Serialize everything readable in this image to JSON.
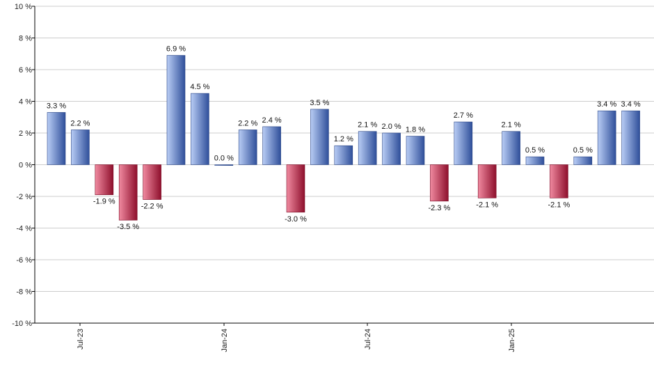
{
  "chart_data": {
    "type": "bar",
    "title": "",
    "xlabel": "",
    "ylabel": "",
    "ylim": [
      -10,
      10
    ],
    "y_ticks": [
      -10,
      -8,
      -6,
      -4,
      -2,
      0,
      2,
      4,
      6,
      8,
      10
    ],
    "y_tick_suffix": " %",
    "grid": true,
    "x_tick_labels": [
      "Jul-23",
      "Jan-24",
      "Jul-24",
      "Jan-25"
    ],
    "values": [
      3.3,
      2.2,
      -1.9,
      -3.5,
      -2.2,
      6.9,
      4.5,
      0.0,
      2.2,
      2.4,
      -3.0,
      3.5,
      1.2,
      2.1,
      2.0,
      1.8,
      -2.3,
      2.7,
      -2.1,
      2.1,
      0.5,
      -2.1,
      0.5,
      3.4,
      3.4
    ],
    "labels": [
      "3.3 %",
      "2.2 %",
      "-1.9 %",
      "-3.5 %",
      "-2.2 %",
      "6.9 %",
      "4.5 %",
      "0.0 %",
      "2.2 %",
      "2.4 %",
      "-3.0 %",
      "3.5 %",
      "1.2 %",
      "2.1 %",
      "2.0 %",
      "1.8 %",
      "-2.3 %",
      "2.7 %",
      "-2.1 %",
      "2.1 %",
      "0.5 %",
      "-2.1 %",
      "0.5 %",
      "3.4 %",
      "3.4 %"
    ],
    "colors": {
      "positive_light": "#b9cdf5",
      "positive_dark": "#2f4f9a",
      "negative_light": "#f08aa0",
      "negative_dark": "#8e0f2c",
      "grid": "#cccccc",
      "axis": "#000000"
    }
  }
}
